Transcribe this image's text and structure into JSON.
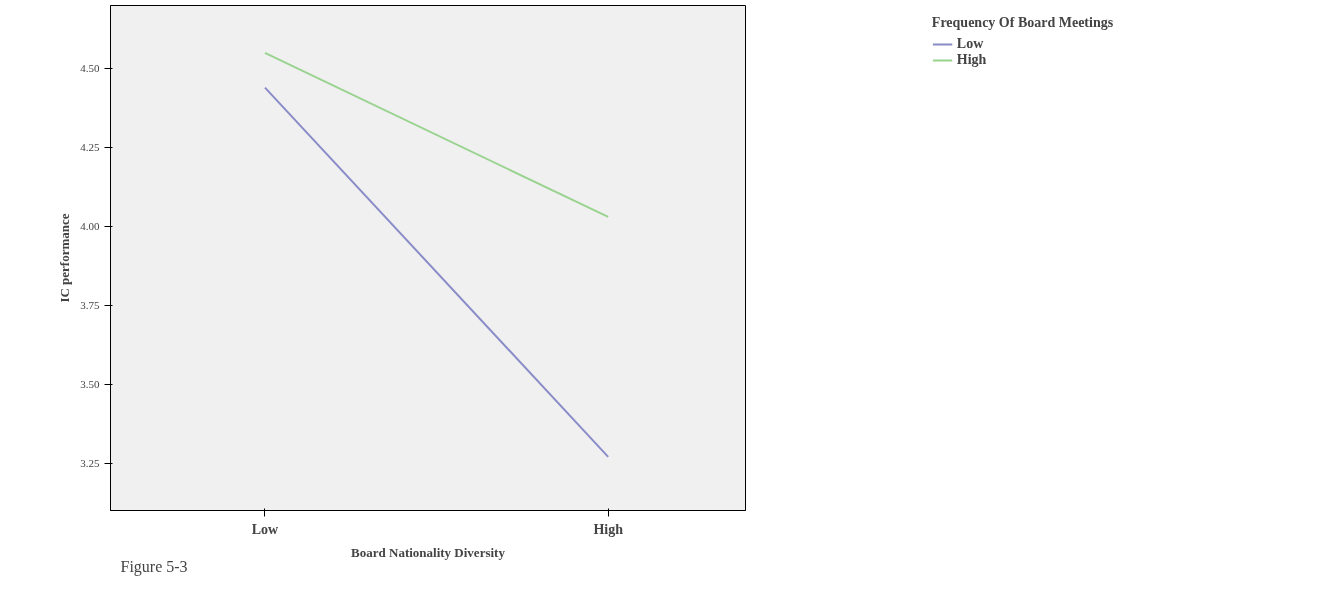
{
  "chart_data": {
    "type": "line",
    "xlabel": "Board Nationality Diversity",
    "ylabel": "IC performance",
    "legend_title": "Frequency Of Board Meetings",
    "categories": [
      "Low",
      "High"
    ],
    "series": [
      {
        "name": "Low",
        "color": "#8a8cc8",
        "values": [
          4.44,
          3.27
        ]
      },
      {
        "name": "High",
        "color": "#99d38f",
        "values": [
          4.55,
          4.03
        ]
      }
    ],
    "ylim": [
      3.1,
      4.7
    ],
    "yticks": [
      {
        "value": 3.25,
        "label": "3.25"
      },
      {
        "value": 3.5,
        "label": "3.50"
      },
      {
        "value": 3.75,
        "label": "3.75"
      },
      {
        "value": 4.0,
        "label": "4.00"
      },
      {
        "value": 4.25,
        "label": "4.25"
      },
      {
        "value": 4.5,
        "label": "4.50"
      }
    ],
    "grid": false,
    "legend": "top right",
    "marker": "none",
    "line_style": "solid",
    "annotations": [
      "Figure 5-3"
    ]
  }
}
